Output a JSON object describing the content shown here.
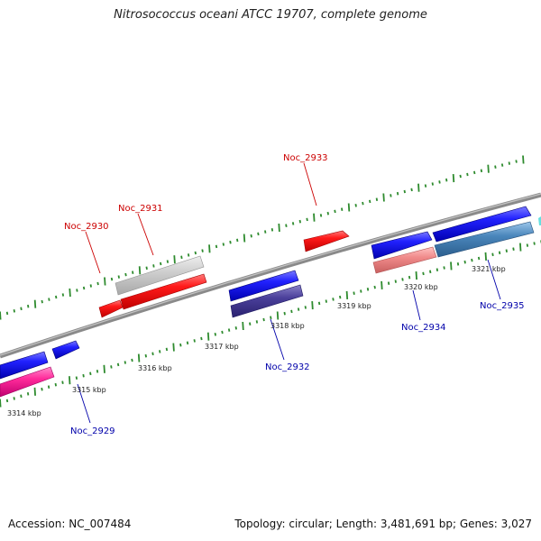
{
  "title": "Nitrosococcus oceani ATCC 19707, complete genome",
  "footer": {
    "accession": "Accession: NC_007484",
    "summary": "Topology: circular; Length: 3,481,691 bp; Genes: 3,027"
  },
  "colors": {
    "backbone": "#8a8a8a",
    "tick_dot": "#2e8b2e",
    "forward_label": "#cc0000",
    "reverse_label": "#0000aa"
  },
  "scale_labels": [
    "3314 kbp",
    "3315 kbp",
    "3316 kbp",
    "3317 kbp",
    "3318 kbp",
    "3319 kbp",
    "3320 kbp",
    "3321 kbp"
  ],
  "forward_genes": [
    {
      "name": "Noc_2930"
    },
    {
      "name": "Noc_2931"
    },
    {
      "name": "Noc_2933"
    }
  ],
  "reverse_genes": [
    {
      "name": "Noc_2929"
    },
    {
      "name": "Noc_2932"
    },
    {
      "name": "Noc_2934"
    },
    {
      "name": "Noc_2935"
    }
  ]
}
